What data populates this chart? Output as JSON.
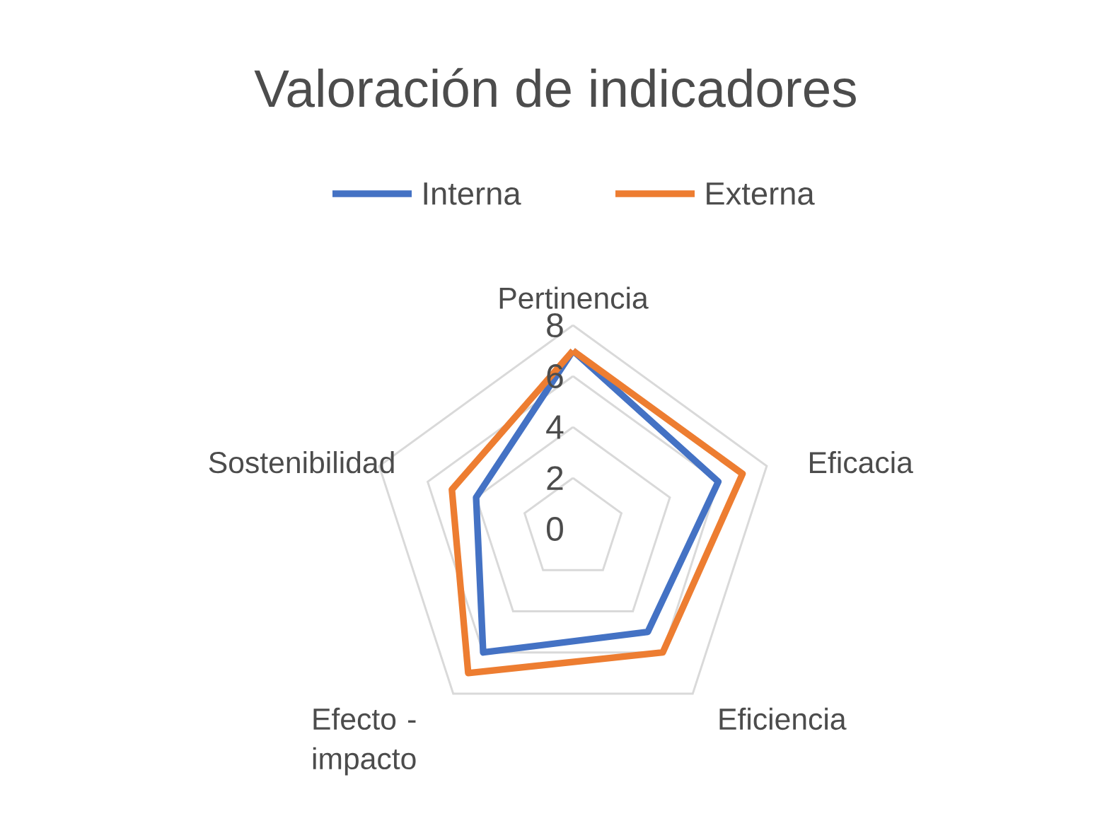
{
  "chart_data": {
    "type": "radar",
    "title": "Valoración de indicadores",
    "categories": [
      "Pertinencia",
      "Eficacia",
      "Eficiencia",
      "Efecto - impacto",
      "Sostenibilidad"
    ],
    "series": [
      {
        "name": "Interna",
        "color": "#4472c4",
        "values": [
          7,
          6,
          5,
          6,
          4
        ]
      },
      {
        "name": "Externa",
        "color": "#ed7d31",
        "values": [
          7,
          7,
          6,
          7,
          5
        ]
      }
    ],
    "ylim": [
      0,
      8
    ],
    "yticks": [
      0,
      2,
      4,
      6,
      8
    ],
    "grid": true,
    "legend": "top"
  }
}
